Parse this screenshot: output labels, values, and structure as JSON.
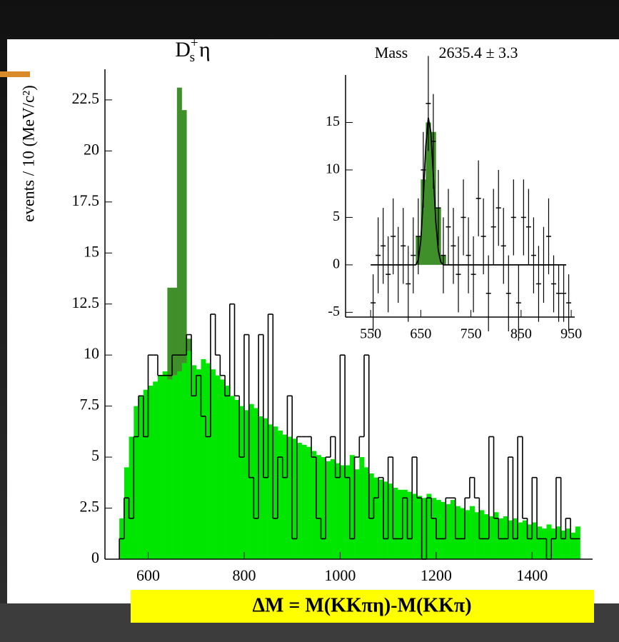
{
  "chart_data": [
    {
      "type": "histogram",
      "title": {
        "base": "D",
        "sub": "s",
        "sup": "+",
        "tail": "η"
      },
      "y_label": "events / 10 (MeV/c²)",
      "x_label": "ΔM = M(KKπη)-M(KKπ)",
      "bins": [
        540,
        550,
        560,
        570,
        580,
        590,
        600,
        610,
        620,
        630,
        640,
        650,
        660,
        670,
        680,
        690,
        700,
        710,
        720,
        730,
        740,
        750,
        760,
        770,
        780,
        790,
        800,
        810,
        820,
        830,
        840,
        850,
        860,
        870,
        880,
        890,
        900,
        910,
        920,
        930,
        940,
        950,
        960,
        970,
        980,
        990,
        1000,
        1010,
        1020,
        1030,
        1040,
        1050,
        1060,
        1070,
        1080,
        1090,
        1100,
        1110,
        1120,
        1130,
        1140,
        1150,
        1160,
        1170,
        1180,
        1190,
        1200,
        1210,
        1220,
        1230,
        1240,
        1250,
        1260,
        1270,
        1280,
        1290,
        1300,
        1310,
        1320,
        1330,
        1340,
        1350,
        1360,
        1370,
        1380,
        1390,
        1400,
        1410,
        1420,
        1430,
        1440,
        1450,
        1460,
        1470,
        1480,
        1490,
        1500
      ],
      "series": [
        {
          "color": "#00e600",
          "style": "bar",
          "values": [
            2,
            4.5,
            6,
            7.5,
            8,
            8.3,
            8.5,
            8.7,
            9,
            9.2,
            8.8,
            9,
            9.2,
            9.6,
            10.2,
            9.5,
            9.3,
            9.8,
            9.6,
            9.3,
            9,
            8.8,
            8.5,
            8,
            7.8,
            7.5,
            7.3,
            7.6,
            7.4,
            7,
            6.9,
            6.6,
            6.5,
            6.3,
            6.1,
            6,
            5.9,
            5.7,
            5.6,
            5.5,
            5.3,
            5.1,
            5,
            4.8,
            4.9,
            4.7,
            4.6,
            4.6,
            5.1,
            4.4,
            5,
            4.5,
            4.2,
            4,
            3.9,
            3.8,
            3.7,
            3.5,
            3.4,
            3.4,
            3.3,
            3.2,
            3.1,
            3,
            3.2,
            3,
            2.9,
            2.8,
            2.7,
            2.9,
            2.6,
            2.5,
            2.4,
            2.6,
            2.3,
            2.4,
            2.2,
            2.1,
            2.3,
            2,
            2.1,
            1.9,
            2,
            1.8,
            1.9,
            1.7,
            1.8,
            1.6,
            1.5,
            1.7,
            1.5,
            1.6,
            1.4,
            1.5,
            1.3,
            1.6
          ]
        },
        {
          "color": "#3f8f2a",
          "style": "bar",
          "stack_on": 0,
          "bins": [
            640,
            650,
            660,
            670,
            680,
            690
          ],
          "values": [
            4.5,
            4.3,
            13.9,
            12.4,
            0.6
          ]
        },
        {
          "color": "#000000",
          "style": "step",
          "values": [
            1,
            3,
            2,
            6,
            8,
            6,
            10,
            10,
            9,
            9,
            9,
            10,
            10,
            10,
            11,
            8,
            9,
            7,
            6,
            12,
            10,
            9,
            8,
            12.5,
            8,
            5,
            11,
            4,
            2,
            11,
            4,
            12,
            2,
            5,
            4,
            8,
            1,
            6,
            6,
            6,
            5,
            2,
            1,
            5,
            6,
            4,
            10,
            4,
            1,
            5,
            6,
            10,
            2,
            3,
            4,
            1,
            5,
            1,
            1,
            3,
            1,
            5,
            3,
            0,
            3,
            2,
            1,
            1,
            3,
            3,
            1,
            1,
            3,
            4,
            3,
            1,
            1,
            6,
            2,
            1,
            1,
            5,
            1,
            6,
            2,
            1,
            4,
            1,
            1,
            0,
            1,
            4,
            1,
            2,
            1,
            1
          ]
        }
      ],
      "xlim": [
        510,
        1526
      ],
      "xticks": [
        600,
        800,
        1000,
        1200,
        1400
      ],
      "ylim": [
        0,
        24
      ],
      "yticks": [
        0,
        2.5,
        5,
        7.5,
        10,
        12.5,
        15,
        17.5,
        20,
        22.5
      ]
    },
    {
      "type": "errorbar",
      "label": "Mass",
      "fit_result": "2635.4 ± 3.3",
      "x": [
        555,
        565,
        575,
        585,
        595,
        605,
        615,
        625,
        635,
        645,
        655,
        665,
        675,
        685,
        695,
        705,
        715,
        725,
        735,
        745,
        755,
        765,
        775,
        785,
        795,
        805,
        815,
        825,
        835,
        845,
        855,
        865,
        875,
        885,
        895,
        905,
        915,
        925,
        935,
        945
      ],
      "values": [
        -4,
        1,
        2,
        -1,
        3,
        0,
        2,
        -2,
        1,
        3,
        10,
        17,
        13,
        6,
        1,
        4,
        2,
        -1,
        5,
        1,
        -1,
        7,
        3,
        -3,
        4,
        6,
        2,
        -3,
        5,
        -4,
        5,
        4,
        1,
        -2,
        0,
        3,
        -2,
        -3,
        -3,
        -4
      ],
      "errors": [
        3,
        4,
        4,
        4,
        4,
        4,
        4,
        4,
        4,
        4,
        4,
        5,
        5,
        4,
        4,
        4,
        4,
        4,
        4,
        4,
        4,
        4,
        4,
        4,
        4,
        4,
        4,
        4,
        4,
        4,
        4,
        4,
        4,
        4,
        4,
        4,
        3,
        3,
        3,
        3
      ],
      "color": "#000000",
      "signal": {
        "color": "#3f8f2a",
        "bins": [
          640,
          650,
          660,
          670,
          680,
          690,
          700
        ],
        "values": [
          3,
          9,
          15,
          14,
          6,
          1
        ]
      },
      "fit": {
        "color": "#000000",
        "x": [
          550,
          640,
          645,
          650,
          655,
          660,
          665,
          670,
          675,
          680,
          685,
          690,
          695,
          940
        ],
        "y": [
          0,
          0,
          0.5,
          2.5,
          7,
          12.5,
          15.5,
          14,
          9.5,
          4.5,
          1.5,
          0.3,
          0,
          0
        ]
      },
      "xlim": [
        500,
        957
      ],
      "xticks": [
        550,
        650,
        750,
        850,
        950
      ],
      "ylim": [
        -5.5,
        20
      ],
      "yticks": [
        -5,
        0,
        5,
        10,
        15
      ]
    }
  ]
}
